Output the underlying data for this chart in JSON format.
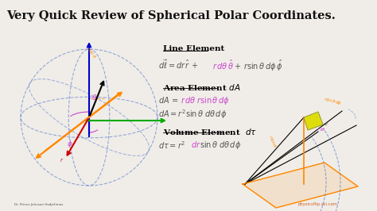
{
  "title": "Very Quick Review of Spherical Polar Coordinates.",
  "bg_color": "#f0ede8",
  "title_color": "#111111",
  "title_fontsize": 10.5,
  "line_element_label": "Line Element",
  "area_element_label": "Area Element $dA$",
  "volume_element_label": "Volume Element  $d\\tau$",
  "sphere_line_color": "#5577cc",
  "arrow_r_color": "#cc0000",
  "arrow_z_color": "#0000cc",
  "arrow_x_color": "#00aa00",
  "arrow_y_color": "#ff8800",
  "theta_color": "#cc44cc",
  "phi_color": "#cc44cc",
  "rsin_color": "#ff8800",
  "rdtheta_color": "#cc44cc",
  "box_color": "#dddd00",
  "orange_line_color": "#ff8800",
  "dashed_color": "#5577cc",
  "watermark": "physicsflip.asi.com",
  "eq_color_main": "#555555",
  "eq_color_highlight": "#cc44cc"
}
